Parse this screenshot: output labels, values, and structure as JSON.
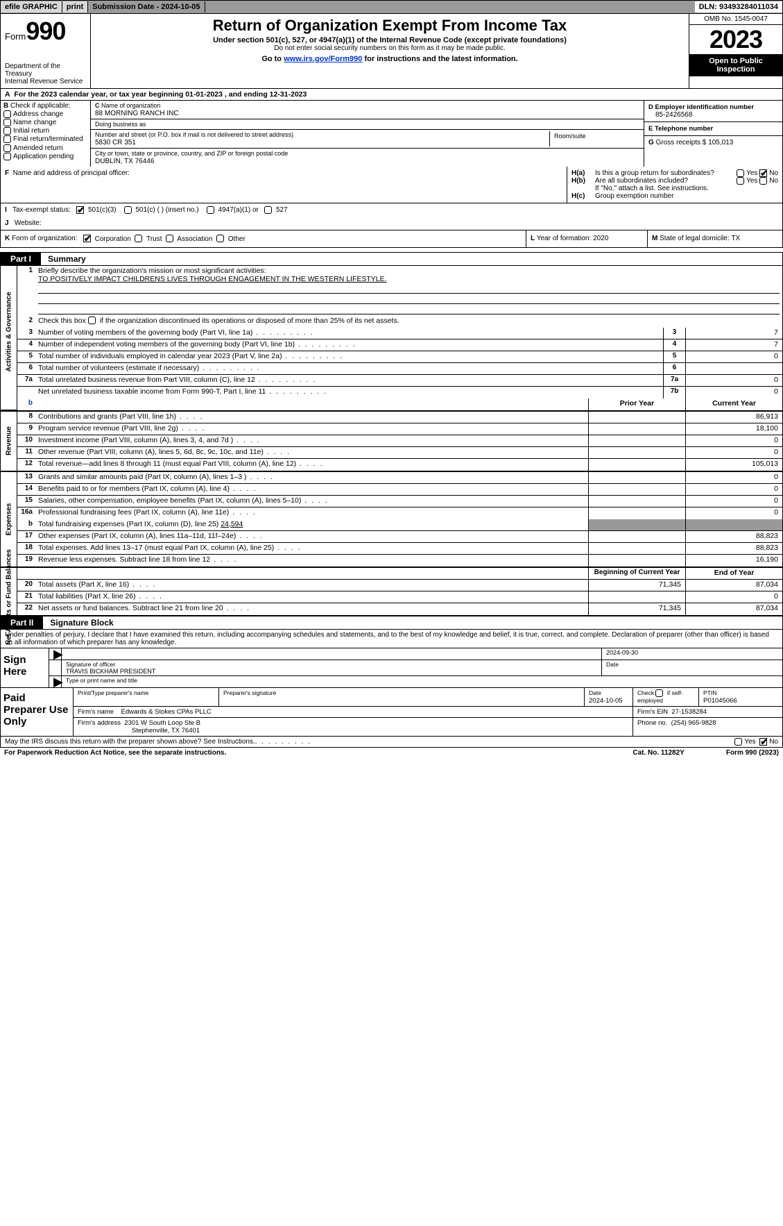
{
  "topbar": {
    "efile": "efile GRAPHIC",
    "print": "print",
    "submission": "Submission Date - 2024-10-05",
    "dln": "DLN: 93493284011034"
  },
  "header": {
    "form_label": "Form",
    "form_number": "990",
    "dept": "Department of the Treasury",
    "irs": "Internal Revenue Service",
    "title": "Return of Organization Exempt From Income Tax",
    "sub1": "Under section 501(c), 527, or 4947(a)(1) of the Internal Revenue Code (except private foundations)",
    "sub2": "Do not enter social security numbers on this form as it may be made public.",
    "sub3_pre": "Go to ",
    "sub3_link": "www.irs.gov/Form990",
    "sub3_post": " for instructions and the latest information.",
    "omb": "OMB No. 1545-0047",
    "year": "2023",
    "open": "Open to Public Inspection"
  },
  "A": {
    "line": "For the 2023 calendar year, or tax year beginning 01-01-2023   , and ending 12-31-2023"
  },
  "B": {
    "label": "Check if applicable:",
    "opts": [
      "Address change",
      "Name change",
      "Initial return",
      "Final return/terminated",
      "Amended return",
      "Application pending"
    ]
  },
  "C": {
    "name_lbl": "Name of organization",
    "name": "88 MORNING RANCH INC",
    "dba_lbl": "Doing business as",
    "dba": "",
    "addr_lbl": "Number and street (or P.O. box if mail is not delivered to street address)",
    "addr": "5830 CR 351",
    "room_lbl": "Room/suite",
    "room": "",
    "city_lbl": "City or town, state or province, country, and ZIP or foreign postal code",
    "city": "DUBLIN, TX  76446"
  },
  "D": {
    "lbl": "D Employer identification number",
    "val": "85-2426568"
  },
  "E": {
    "lbl": "E Telephone number",
    "val": ""
  },
  "G": {
    "lbl": "G",
    "txt": "Gross receipts $",
    "val": "105,013"
  },
  "F": {
    "lbl": "F",
    "txt": "Name and address of principal officer:",
    "val": ""
  },
  "H": {
    "a_lbl": "H(a)",
    "a_txt": "Is this a group return for subordinates?",
    "b_lbl": "H(b)",
    "b_txt": "Are all subordinates included?",
    "b_note": "If \"No,\" attach a list. See instructions.",
    "c_lbl": "H(c)",
    "c_txt": "Group exemption number",
    "yes": "Yes",
    "no": "No"
  },
  "I": {
    "lbl": "I",
    "txt": "Tax-exempt status:",
    "c3": "501(c)(3)",
    "c_other": "501(c) (  ) (insert no.)",
    "a4947": "4947(a)(1) or",
    "s527": "527"
  },
  "J": {
    "lbl": "J",
    "txt": "Website:",
    "val": ""
  },
  "K": {
    "lbl": "K",
    "txt": "Form of organization:",
    "corp": "Corporation",
    "trust": "Trust",
    "assoc": "Association",
    "other": "Other"
  },
  "L": {
    "lbl": "L",
    "txt": "Year of formation:",
    "val": "2020"
  },
  "M": {
    "lbl": "M",
    "txt": "State of legal domicile:",
    "val": "TX"
  },
  "partI": {
    "num": "Part I",
    "title": "Summary"
  },
  "summary": {
    "sections": {
      "gov": "Activities & Governance",
      "rev": "Revenue",
      "exp": "Expenses",
      "net": "Net Assets or Fund Balances"
    },
    "line1_lbl": "Briefly describe the organization's mission or most significant activities:",
    "line1_val": "TO POSITIVELY IMPACT CHILDRENS LIVES THROUGH ENGAGEMENT IN THE WESTERN LIFESTYLE.",
    "line2": "Check this box       if the organization discontinued its operations or disposed of more than 25% of its net assets.",
    "lines_simple": [
      {
        "n": "3",
        "d": "Number of voting members of the governing body (Part VI, line 1a)",
        "id": "3",
        "v": "7"
      },
      {
        "n": "4",
        "d": "Number of independent voting members of the governing body (Part VI, line 1b)",
        "id": "4",
        "v": "7"
      },
      {
        "n": "5",
        "d": "Total number of individuals employed in calendar year 2023 (Part V, line 2a)",
        "id": "5",
        "v": "0"
      },
      {
        "n": "6",
        "d": "Total number of volunteers (estimate if necessary)",
        "id": "6",
        "v": ""
      },
      {
        "n": "7a",
        "d": "Total unrelated business revenue from Part VIII, column (C), line 12",
        "id": "7a",
        "v": "0"
      },
      {
        "n": "",
        "d": "Net unrelated business taxable income from Form 990-T, Part I, line 11",
        "id": "7b",
        "v": "0"
      }
    ],
    "py_hdr": "Prior Year",
    "cy_hdr": "Current Year",
    "lines_two": [
      {
        "n": "8",
        "d": "Contributions and grants (Part VIII, line 1h)",
        "py": "",
        "cy": "86,913"
      },
      {
        "n": "9",
        "d": "Program service revenue (Part VIII, line 2g)",
        "py": "",
        "cy": "18,100"
      },
      {
        "n": "10",
        "d": "Investment income (Part VIII, column (A), lines 3, 4, and 7d )",
        "py": "",
        "cy": "0"
      },
      {
        "n": "11",
        "d": "Other revenue (Part VIII, column (A), lines 5, 6d, 8c, 9c, 10c, and 11e)",
        "py": "",
        "cy": "0"
      },
      {
        "n": "12",
        "d": "Total revenue—add lines 8 through 11 (must equal Part VIII, column (A), line 12)",
        "py": "",
        "cy": "105,013"
      }
    ],
    "lines_exp": [
      {
        "n": "13",
        "d": "Grants and similar amounts paid (Part IX, column (A), lines 1–3 )",
        "py": "",
        "cy": "0"
      },
      {
        "n": "14",
        "d": "Benefits paid to or for members (Part IX, column (A), line 4)",
        "py": "",
        "cy": "0"
      },
      {
        "n": "15",
        "d": "Salaries, other compensation, employee benefits (Part IX, column (A), lines 5–10)",
        "py": "",
        "cy": "0"
      },
      {
        "n": "16a",
        "d": "Professional fundraising fees (Part IX, column (A), line 11e)",
        "py": "",
        "cy": "0"
      }
    ],
    "line16b": {
      "n": "b",
      "d": "Total fundraising expenses (Part IX, column (D), line 25)",
      "v": "24,594"
    },
    "lines_exp2": [
      {
        "n": "17",
        "d": "Other expenses (Part IX, column (A), lines 11a–11d, 11f–24e)",
        "py": "",
        "cy": "88,823"
      },
      {
        "n": "18",
        "d": "Total expenses. Add lines 13–17 (must equal Part IX, column (A), line 25)",
        "py": "",
        "cy": "88,823"
      },
      {
        "n": "19",
        "d": "Revenue less expenses. Subtract line 18 from line 12",
        "py": "",
        "cy": "16,190"
      }
    ],
    "boy_hdr": "Beginning of Current Year",
    "eoy_hdr": "End of Year",
    "lines_net": [
      {
        "n": "20",
        "d": "Total assets (Part X, line 16)",
        "py": "71,345",
        "cy": "87,034"
      },
      {
        "n": "21",
        "d": "Total liabilities (Part X, line 26)",
        "py": "",
        "cy": "0"
      },
      {
        "n": "22",
        "d": "Net assets or fund balances. Subtract line 21 from line 20",
        "py": "71,345",
        "cy": "87,034"
      }
    ]
  },
  "partII": {
    "num": "Part II",
    "title": "Signature Block"
  },
  "sig": {
    "perjury": "Under penalties of perjury, I declare that I have examined this return, including accompanying schedules and statements, and to the best of my knowledge and belief, it is true, correct, and complete. Declaration of preparer (other than officer) is based on all information of which preparer has any knowledge.",
    "sign_here": "Sign Here",
    "sig_officer_lbl": "Signature of officer",
    "officer_name": "TRAVIS BICKHAM PRESIDENT",
    "sig_date": "2024-09-30",
    "date_lbl": "Date",
    "type_lbl": "Type or print name and title"
  },
  "prep": {
    "title": "Paid Preparer Use Only",
    "name_lbl": "Print/Type preparer's name",
    "name": "",
    "sig_lbl": "Preparer's signature",
    "date_lbl": "Date",
    "date": "2024-10-05",
    "self_lbl": "Check       if self-employed",
    "ptin_lbl": "PTIN",
    "ptin": "P01045066",
    "firm_name_lbl": "Firm's name",
    "firm_name": "Edwards & Stokes CPAs PLLC",
    "firm_ein_lbl": "Firm's EIN",
    "firm_ein": "27-1538284",
    "firm_addr_lbl": "Firm's address",
    "firm_addr1": "2301 W South Loop Ste B",
    "firm_addr2": "Stephenville, TX  76401",
    "phone_lbl": "Phone no.",
    "phone": "(254) 965-9828"
  },
  "discuss": {
    "txt": "May the IRS discuss this return with the preparer shown above? See Instructions.",
    "yes": "Yes",
    "no": "No"
  },
  "footer": {
    "pra": "For Paperwork Reduction Act Notice, see the separate instructions.",
    "cat": "Cat. No. 11282Y",
    "form": "Form 990 (2023)"
  }
}
